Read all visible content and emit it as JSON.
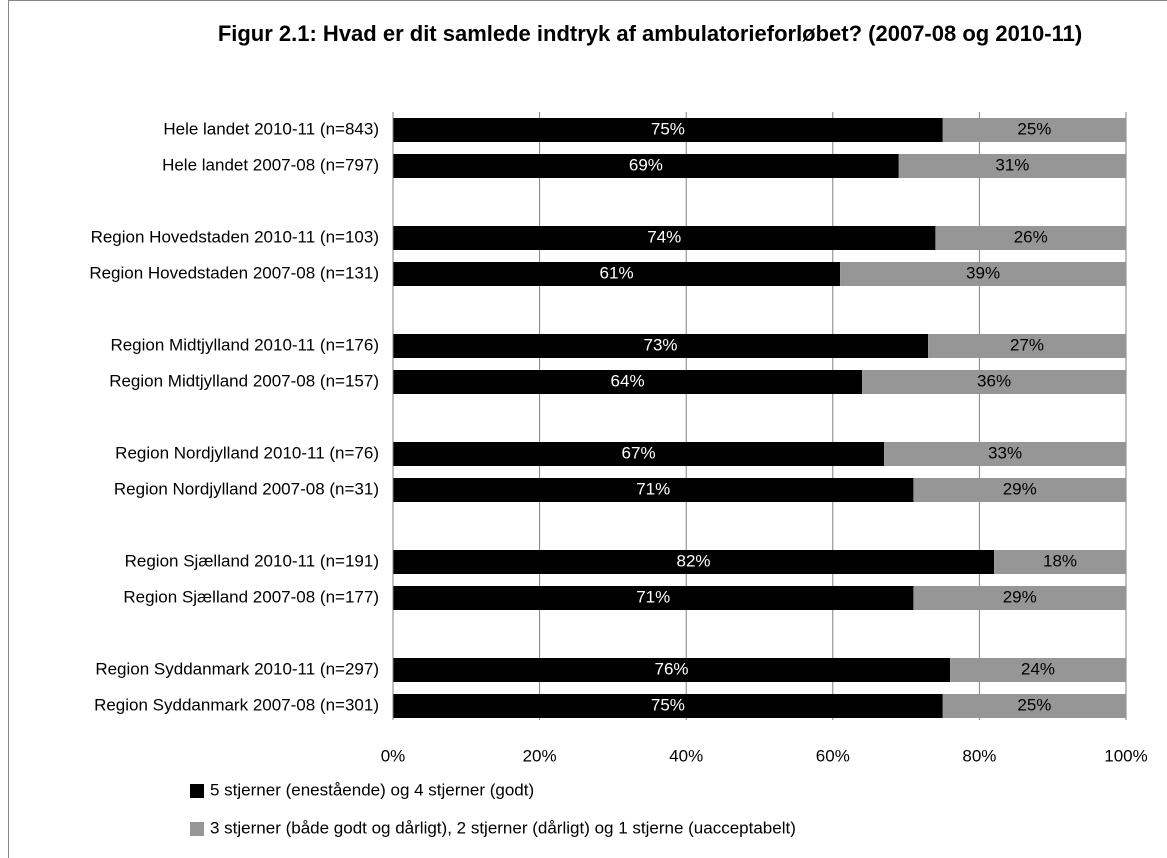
{
  "chart_data": {
    "type": "stacked_bar_horizontal",
    "title": "Figur 2.1: Hvad er dit samlede indtryk af ambulatorieforløbet? (2007-08 og 2010-11)",
    "categories": [
      "Hele landet 2010-11 (n=843)",
      "Hele landet 2007-08 (n=797)",
      null,
      "Region Hovedstaden 2010-11 (n=103)",
      "Region Hovedstaden 2007-08 (n=131)",
      null,
      "Region Midtjylland 2010-11 (n=176)",
      "Region Midtjylland 2007-08 (n=157)",
      null,
      "Region Nordjylland 2010-11 (n=76)",
      "Region Nordjylland 2007-08 (n=31)",
      null,
      "Region Sjælland 2010-11 (n=191)",
      "Region Sjælland 2007-08 (n=177)",
      null,
      "Region Syddanmark 2010-11 (n=297)",
      "Region Syddanmark 2007-08 (n=301)"
    ],
    "series": [
      {
        "name": "5 stjerner (enestående) og 4 stjerner (godt)",
        "color": "#000000",
        "values": [
          75,
          69,
          null,
          74,
          61,
          null,
          73,
          64,
          null,
          67,
          71,
          null,
          82,
          71,
          null,
          76,
          75
        ],
        "value_labels": [
          "75%",
          "69%",
          null,
          "74%",
          "61%",
          null,
          "73%",
          "64%",
          null,
          "67%",
          "71%",
          null,
          "82%",
          "71%",
          null,
          "76%",
          "75%"
        ],
        "label_color": "#ffffff"
      },
      {
        "name": "3 stjerner (både godt og dårligt), 2 stjerner (dårligt) og 1 stjerne (uacceptabelt)",
        "color": "#969696",
        "values": [
          25,
          31,
          null,
          26,
          39,
          null,
          27,
          36,
          null,
          33,
          29,
          null,
          18,
          29,
          null,
          24,
          25
        ],
        "value_labels": [
          "25%",
          "31%",
          null,
          "26%",
          "39%",
          null,
          "27%",
          "36%",
          null,
          "33%",
          "29%",
          null,
          "18%",
          "29%",
          null,
          "24%",
          "25%"
        ],
        "label_color": "#000000"
      }
    ],
    "xlim": [
      0,
      100
    ],
    "xticks": [
      {
        "value": 0,
        "label": "0%"
      },
      {
        "value": 20,
        "label": "20%"
      },
      {
        "value": 40,
        "label": "40%"
      },
      {
        "value": 60,
        "label": "60%"
      },
      {
        "value": 80,
        "label": "80%"
      },
      {
        "value": 100,
        "label": "100%"
      }
    ],
    "grid": true,
    "legend": "bottom"
  }
}
